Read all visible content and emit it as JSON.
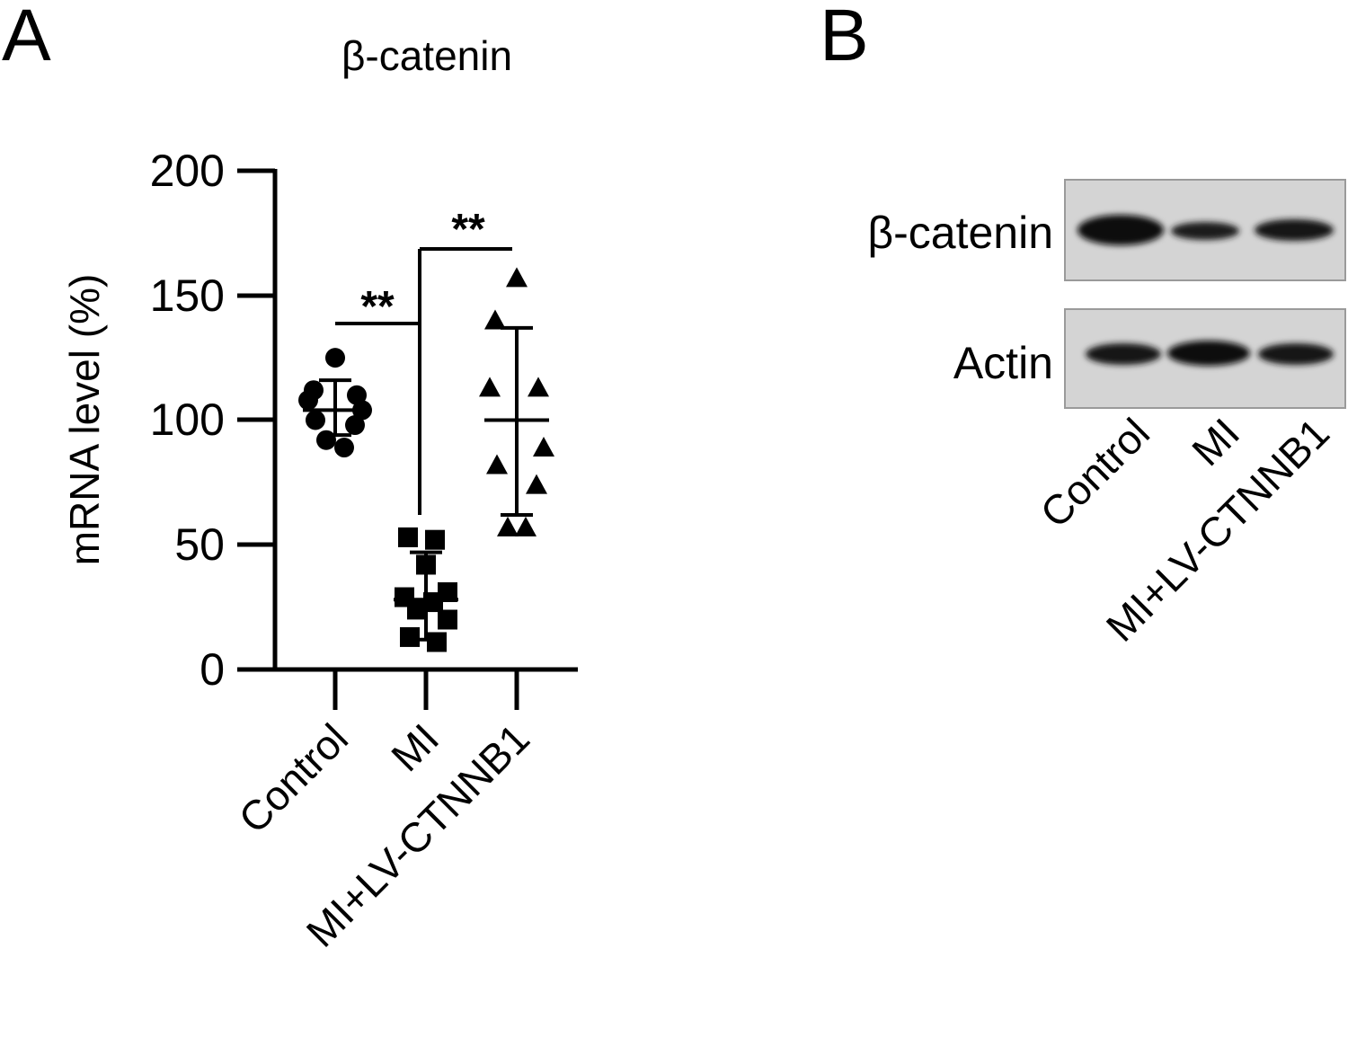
{
  "panels": {
    "a": {
      "letter": "A"
    },
    "b": {
      "letter": "B"
    }
  },
  "chart_data": {
    "type": "scatter",
    "title": "β-catenin",
    "xlabel": "",
    "ylabel": "mRNA level (%)",
    "ylim": [
      0,
      200
    ],
    "yticks": [
      "0",
      "50",
      "100",
      "150",
      "200"
    ],
    "categories": [
      "Control",
      "MI",
      "MI+LV-CTNNB1"
    ],
    "series": [
      {
        "category": "Control",
        "marker": "circle",
        "values": [
          125,
          112,
          110,
          108,
          104,
          100,
          98,
          92,
          89
        ],
        "mean": 104,
        "sd_upper": 116,
        "sd_lower": 94
      },
      {
        "category": "MI",
        "marker": "square",
        "values": [
          53,
          52,
          42,
          31,
          29,
          27,
          24,
          20,
          13,
          11
        ],
        "mean": 28,
        "sd_upper": 47,
        "sd_lower": 12
      },
      {
        "category": "MI+LV-CTNNB1",
        "marker": "triangle",
        "values": [
          157,
          140,
          113,
          113,
          89,
          82,
          74,
          57,
          57
        ],
        "mean": 100,
        "sd_upper": 137,
        "sd_lower": 62
      }
    ],
    "significance": [
      {
        "from": "Control",
        "to": "MI",
        "label": "**"
      },
      {
        "from": "MI",
        "to": "MI+LV-CTNNB1",
        "label": "**"
      }
    ]
  },
  "western_blot": {
    "bands": [
      {
        "label": "β-catenin",
        "intensities": [
          1.0,
          0.55,
          0.8
        ]
      },
      {
        "label": "Actin",
        "intensities": [
          0.9,
          1.0,
          0.9
        ]
      }
    ],
    "lanes": [
      "Control",
      "MI",
      "MI+LV-CTNNB1"
    ]
  }
}
